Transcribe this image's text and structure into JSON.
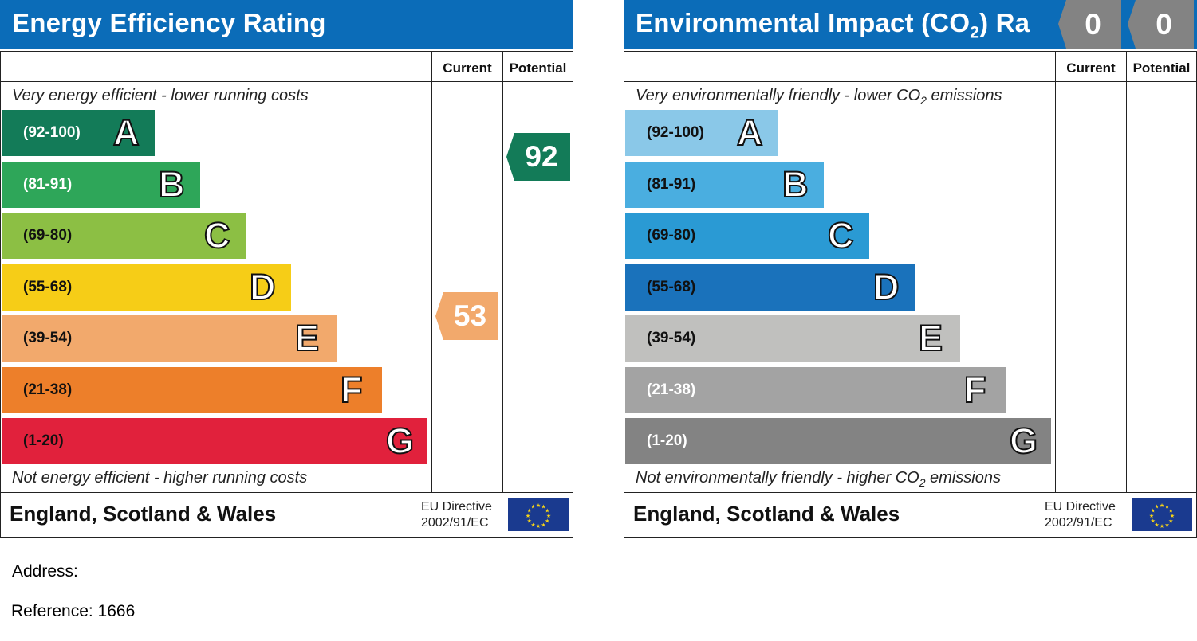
{
  "energy_panel": {
    "title": "Energy Efficiency Rating",
    "col_current": "Current",
    "col_potential": "Potential",
    "top_note": "Very energy efficient - lower running costs",
    "bottom_note": "Not energy efficient - higher running costs",
    "region": "England, Scotland & Wales",
    "directive_line1": "EU Directive",
    "directive_line2": "2002/91/EC",
    "bands": [
      {
        "range": "(92-100)",
        "letter": "A",
        "color": "#137b58",
        "range_color": "#ffffff"
      },
      {
        "range": "(81-91)",
        "letter": "B",
        "color": "#2ea659",
        "range_color": "#ffffff"
      },
      {
        "range": "(69-80)",
        "letter": "C",
        "color": "#8cbf44",
        "range_color": "#111111"
      },
      {
        "range": "(55-68)",
        "letter": "D",
        "color": "#f6cd17",
        "range_color": "#111111"
      },
      {
        "range": "(39-54)",
        "letter": "E",
        "color": "#f2a96c",
        "range_color": "#111111"
      },
      {
        "range": "(21-38)",
        "letter": "F",
        "color": "#ed7f2a",
        "range_color": "#111111"
      },
      {
        "range": "(1-20)",
        "letter": "G",
        "color": "#e1213c",
        "range_color": "#111111"
      }
    ],
    "current": {
      "value": "53",
      "color": "#f2a96c"
    },
    "potential": {
      "value": "92",
      "color": "#137b58"
    }
  },
  "env_panel": {
    "title_main": "Environmental Impact (CO",
    "title_sub": "2",
    "title_tail": ") Ra",
    "col_current": "Current",
    "col_potential": "Potential",
    "top_note_main": "Very environmentally friendly - lower CO",
    "top_note_sub": "2",
    "top_note_tail": " emissions",
    "bottom_note_main": "Not environmentally friendly - higher CO",
    "bottom_note_sub": "2",
    "bottom_note_tail": " emissions",
    "region": "England, Scotland & Wales",
    "directive_line1": "EU Directive",
    "directive_line2": "2002/91/EC",
    "bands": [
      {
        "range": "(92-100)",
        "letter": "A",
        "color": "#8ac8e8",
        "range_color": "#111111"
      },
      {
        "range": "(81-91)",
        "letter": "B",
        "color": "#4aaee0",
        "range_color": "#111111"
      },
      {
        "range": "(69-80)",
        "letter": "C",
        "color": "#2a9ad4",
        "range_color": "#111111"
      },
      {
        "range": "(55-68)",
        "letter": "D",
        "color": "#1a72bb",
        "range_color": "#111111"
      },
      {
        "range": "(39-54)",
        "letter": "E",
        "color": "#c0c0be",
        "range_color": "#111111"
      },
      {
        "range": "(21-38)",
        "letter": "F",
        "color": "#a3a3a3",
        "range_color": "#ffffff"
      },
      {
        "range": "(1-20)",
        "letter": "G",
        "color": "#838383",
        "range_color": "#ffffff"
      }
    ],
    "current": {
      "value": "0",
      "color": "#838383"
    },
    "potential": {
      "value": "0",
      "color": "#838383"
    }
  },
  "address_label": "Address:",
  "reference_label": "Reference: 1666",
  "chart_data": [
    {
      "type": "bar",
      "title": "Energy Efficiency Rating",
      "categories": [
        "A",
        "B",
        "C",
        "D",
        "E",
        "F",
        "G"
      ],
      "ranges": [
        "92-100",
        "81-91",
        "69-80",
        "55-68",
        "39-54",
        "21-38",
        "1-20"
      ],
      "current": 53,
      "potential": 92
    },
    {
      "type": "bar",
      "title": "Environmental Impact (CO2) Ra",
      "categories": [
        "A",
        "B",
        "C",
        "D",
        "E",
        "F",
        "G"
      ],
      "ranges": [
        "92-100",
        "81-91",
        "69-80",
        "55-68",
        "39-54",
        "21-38",
        "1-20"
      ],
      "current": 0,
      "potential": 0
    }
  ]
}
